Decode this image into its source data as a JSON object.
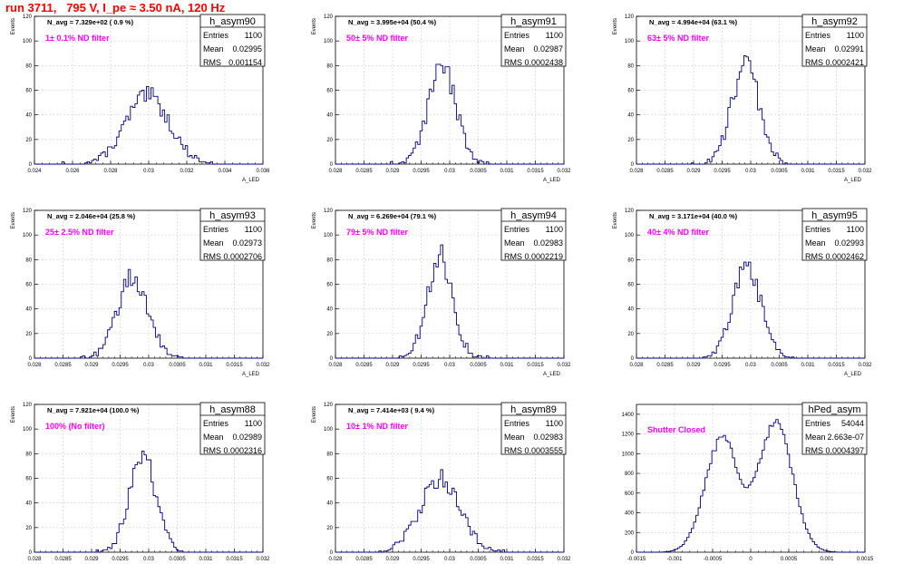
{
  "title": "run 3711,   795 V, I_pe ≈ 3.50 nA, 120 Hz",
  "colors": {
    "title": "#ff0000",
    "hist": "#000080",
    "filter": "#ff00ff",
    "grid": "#cccccc"
  },
  "chart_data": [
    {
      "type": "histogram",
      "name": "h_asym90",
      "header": "N_avg = 7.329e+02 ( 0.9 %)",
      "filter": "1± 0.1% ND filter",
      "stats": {
        "entries": "1100",
        "mean": "0.02995",
        "rms": "0.001154"
      },
      "xlim": [
        0.024,
        0.036
      ],
      "ylim": [
        0,
        120
      ],
      "xticks": [
        0.024,
        0.026,
        0.028,
        0.03,
        0.032,
        0.034,
        0.036
      ],
      "xtick_labels": [
        "0.024",
        "0.026",
        "0.028",
        "0.03",
        "0.032",
        "0.034",
        "0.036"
      ],
      "yticks": [
        0,
        20,
        40,
        60,
        80,
        100,
        120
      ],
      "ylabel": "Events",
      "xlabel": "A_LED",
      "grid": true,
      "mean": 0.02995,
      "rms": 0.001154,
      "peak": 55,
      "entries": 1100
    },
    {
      "type": "histogram",
      "name": "h_asym91",
      "header": "N_avg = 3.995e+04 (50.4 %)",
      "filter": "50± 5% ND filter",
      "stats": {
        "entries": "1100",
        "mean": "0.02987",
        "rms": "0.0002438"
      },
      "xlim": [
        0.028,
        0.032
      ],
      "ylim": [
        0,
        120
      ],
      "xticks": [
        0.028,
        0.0285,
        0.029,
        0.0295,
        0.03,
        0.0305,
        0.031,
        0.0315,
        0.032
      ],
      "xtick_labels": [
        "0.028",
        "0.0285",
        "0.029",
        "0.0295",
        "0.03",
        "0.0305",
        "0.031",
        "0.0315",
        "0.032"
      ],
      "yticks": [
        0,
        20,
        40,
        60,
        80,
        100,
        120
      ],
      "ylabel": "Events",
      "xlabel": "A_LED",
      "grid": true,
      "mean": 0.02987,
      "rms": 0.0002438,
      "peak": 78,
      "entries": 1100
    },
    {
      "type": "histogram",
      "name": "h_asym92",
      "header": "N_avg = 4.994e+04 (63.1 %)",
      "filter": "63± 5% ND filter",
      "stats": {
        "entries": "1100",
        "mean": "0.02991",
        "rms": "0.0002421"
      },
      "xlim": [
        0.028,
        0.032
      ],
      "ylim": [
        0,
        120
      ],
      "xticks": [
        0.028,
        0.0285,
        0.029,
        0.0295,
        0.03,
        0.0305,
        0.031,
        0.0315,
        0.032
      ],
      "xtick_labels": [
        "0.028",
        "0.0285",
        "0.029",
        "0.0295",
        "0.03",
        "0.0305",
        "0.031",
        "0.0315",
        "0.032"
      ],
      "yticks": [
        0,
        20,
        40,
        60,
        80,
        100,
        120
      ],
      "ylabel": "Events",
      "xlabel": "A_LED",
      "grid": true,
      "mean": 0.02991,
      "rms": 0.0002421,
      "peak": 80,
      "entries": 1100
    },
    {
      "type": "histogram",
      "name": "h_asym93",
      "header": "N_avg = 2.046e+04 (25.8 %)",
      "filter": "25± 2.5% ND filter",
      "stats": {
        "entries": "1100",
        "mean": "0.02973",
        "rms": "0.0002706"
      },
      "xlim": [
        0.028,
        0.032
      ],
      "ylim": [
        0,
        120
      ],
      "xticks": [
        0.028,
        0.0285,
        0.029,
        0.0295,
        0.03,
        0.0305,
        0.031,
        0.0315,
        0.032
      ],
      "xtick_labels": [
        "0.028",
        "0.0285",
        "0.029",
        "0.0295",
        "0.03",
        "0.0305",
        "0.031",
        "0.0315",
        "0.032"
      ],
      "yticks": [
        0,
        20,
        40,
        60,
        80,
        100,
        120
      ],
      "ylabel": "Events",
      "xlabel": "A_LED",
      "grid": true,
      "mean": 0.02973,
      "rms": 0.0002706,
      "peak": 66,
      "entries": 1100
    },
    {
      "type": "histogram",
      "name": "h_asym94",
      "header": "N_avg = 6.269e+04 (79.1 %)",
      "filter": "79± 5% ND filter",
      "stats": {
        "entries": "1100",
        "mean": "0.02983",
        "rms": "0.0002219"
      },
      "xlim": [
        0.028,
        0.032
      ],
      "ylim": [
        0,
        120
      ],
      "xticks": [
        0.028,
        0.0285,
        0.029,
        0.0295,
        0.03,
        0.0305,
        0.031,
        0.0315,
        0.032
      ],
      "xtick_labels": [
        "0.028",
        "0.0285",
        "0.029",
        "0.0295",
        "0.03",
        "0.0305",
        "0.031",
        "0.0315",
        "0.032"
      ],
      "yticks": [
        0,
        20,
        40,
        60,
        80,
        100,
        120
      ],
      "ylabel": "Events",
      "xlabel": "A_LED",
      "grid": true,
      "mean": 0.02983,
      "rms": 0.0002219,
      "peak": 83,
      "entries": 1100
    },
    {
      "type": "histogram",
      "name": "h_asym95",
      "header": "N_avg = 3.171e+04 (40.0 %)",
      "filter": "40± 4% ND filter",
      "stats": {
        "entries": "1100",
        "mean": "0.02993",
        "rms": "0.0002462"
      },
      "xlim": [
        0.028,
        0.032
      ],
      "ylim": [
        0,
        120
      ],
      "xticks": [
        0.028,
        0.0285,
        0.029,
        0.0295,
        0.03,
        0.0305,
        0.031,
        0.0315,
        0.032
      ],
      "xtick_labels": [
        "0.028",
        "0.0285",
        "0.029",
        "0.0295",
        "0.03",
        "0.0305",
        "0.031",
        "0.0315",
        "0.032"
      ],
      "yticks": [
        0,
        20,
        40,
        60,
        80,
        100,
        120
      ],
      "ylabel": "Events",
      "xlabel": "A_LED",
      "grid": true,
      "mean": 0.02993,
      "rms": 0.0002462,
      "peak": 77,
      "entries": 1100
    },
    {
      "type": "histogram",
      "name": "h_asym88",
      "header": "N_avg = 7.921e+04 (100.0 %)",
      "filter": "100% (No filter)",
      "stats": {
        "entries": "1100",
        "mean": "0.02989",
        "rms": "0.0002316"
      },
      "xlim": [
        0.028,
        0.032
      ],
      "ylim": [
        0,
        120
      ],
      "xticks": [
        0.028,
        0.0285,
        0.029,
        0.0295,
        0.03,
        0.0305,
        0.031,
        0.0315,
        0.032
      ],
      "xtick_labels": [
        "0.028",
        "0.0285",
        "0.029",
        "0.0295",
        "0.03",
        "0.0305",
        "0.031",
        "0.0315",
        "0.032"
      ],
      "yticks": [
        0,
        20,
        40,
        60,
        80,
        100,
        120
      ],
      "ylabel": "Events",
      "xlabel": "A_LED",
      "grid": true,
      "mean": 0.02989,
      "rms": 0.0002316,
      "peak": 80,
      "entries": 1100
    },
    {
      "type": "histogram",
      "name": "h_asym89",
      "header": "N_avg = 7.414e+03 ( 9.4 %)",
      "filter": "10± 1% ND filter",
      "stats": {
        "entries": "1100",
        "mean": "0.02983",
        "rms": "0.0003555"
      },
      "xlim": [
        0.028,
        0.032
      ],
      "ylim": [
        0,
        120
      ],
      "xticks": [
        0.028,
        0.0285,
        0.029,
        0.0295,
        0.03,
        0.0305,
        0.031,
        0.0315,
        0.032
      ],
      "xtick_labels": [
        "0.028",
        "0.0285",
        "0.029",
        "0.0295",
        "0.03",
        "0.0305",
        "0.031",
        "0.0315",
        "0.032"
      ],
      "yticks": [
        0,
        20,
        40,
        60,
        80,
        100,
        120
      ],
      "ylabel": "Events",
      "xlabel": "A_LED",
      "grid": true,
      "mean": 0.02983,
      "rms": 0.0003555,
      "peak": 60,
      "entries": 1100
    },
    {
      "type": "histogram",
      "name": "hPed_asym",
      "header": "",
      "filter": "Shutter Closed",
      "stats": {
        "entries": "54044",
        "mean": "2.663e-07",
        "rms": "0.0004397"
      },
      "xlim": [
        -0.0015,
        0.0015
      ],
      "ylim": [
        0,
        1500
      ],
      "xticks": [
        -0.0015,
        -0.001,
        -0.0005,
        0,
        0.0005,
        0.001,
        0.0015
      ],
      "xtick_labels": [
        "-0.0015",
        "-0.001",
        "-0.0005",
        "0",
        "0.0005",
        "0.001",
        "0.0015"
      ],
      "yticks": [
        0,
        200,
        400,
        600,
        800,
        1000,
        1200,
        1400
      ],
      "ylabel": "",
      "xlabel": "",
      "grid": true,
      "bimodal": true,
      "peaks": [
        -0.00038,
        0.00033
      ],
      "peak": 1420,
      "dip": 830,
      "entries": 54044
    }
  ]
}
